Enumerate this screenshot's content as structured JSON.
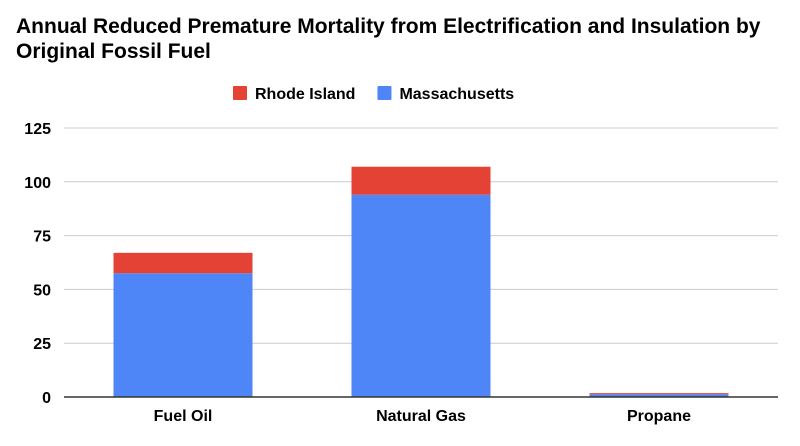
{
  "chart_data": {
    "type": "bar",
    "stacked": true,
    "title": "Annual Reduced Premature Mortality from Electrification and Insulation by Original Fossil Fuel",
    "xlabel": "",
    "ylabel": "",
    "categories": [
      "Fuel Oil",
      "Natural Gas",
      "Propane"
    ],
    "series": [
      {
        "name": "Massachusetts",
        "color": "#4f86f7",
        "values": [
          57.5,
          94,
          1.3
        ]
      },
      {
        "name": "Rhode Island",
        "color": "#e34234",
        "values": [
          9.5,
          13,
          0.5
        ]
      }
    ],
    "legend_order": [
      "Rhode Island",
      "Massachusetts"
    ],
    "legend_position": "top",
    "ylim": [
      0,
      125
    ],
    "yticks": [
      "0",
      "25",
      "50",
      "75",
      "100",
      "125"
    ],
    "grid": true,
    "colors": {
      "gridline": "#cccccc",
      "axis": "#333333"
    }
  }
}
